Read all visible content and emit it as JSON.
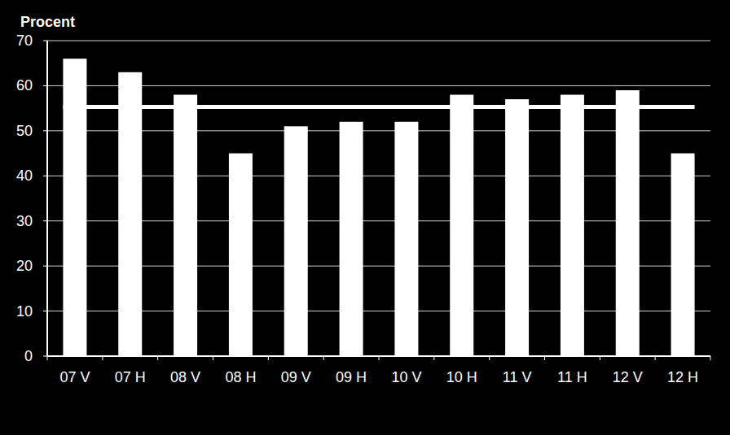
{
  "chart_data": {
    "type": "bar",
    "y_label": "Procent",
    "categories": [
      "07 V",
      "07 H",
      "08 V",
      "08 H",
      "09 V",
      "09 H",
      "10 V",
      "10 H",
      "11 V",
      "11 H",
      "12 V",
      "12 H"
    ],
    "series": [
      {
        "type": "bar",
        "color": "#ffffff",
        "values": [
          66,
          63,
          58,
          45,
          51,
          52,
          52,
          58,
          57,
          58,
          59,
          45
        ]
      },
      {
        "type": "line",
        "color": "#ffffff",
        "values": [
          55.3,
          55.3,
          55.3,
          55.3,
          55.3,
          55.3,
          55.3,
          55.3,
          55.3,
          55.3,
          55.3,
          55.3
        ]
      }
    ],
    "ylim": [
      0,
      70
    ],
    "yticks": [
      0,
      10,
      20,
      30,
      40,
      50,
      60,
      70
    ],
    "grid": true
  }
}
